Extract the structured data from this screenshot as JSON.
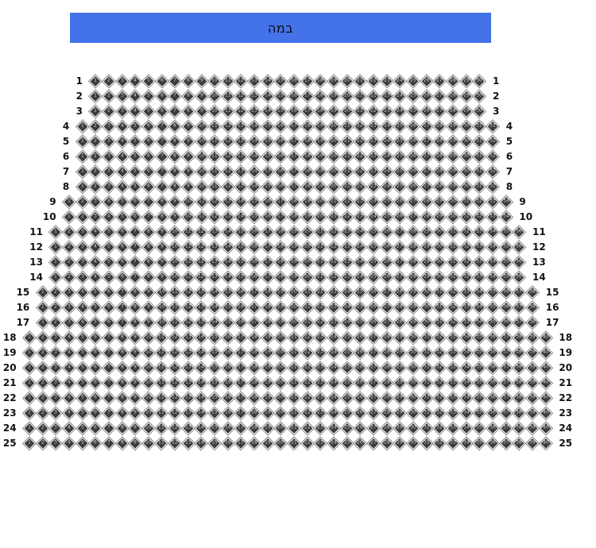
{
  "stage": {
    "label": "במה",
    "color": "#4472E8",
    "text_color": "#0B0B0B"
  },
  "seatmap": {
    "seat_numbering": "seats in each row are numbered 1..N left to right, shown inside each seat icon",
    "seat_border_color": "#8F8F8F",
    "seat_fill_color": "#3C3C3C",
    "row_label_color": "#111111",
    "rows": [
      {
        "label": "1",
        "seats": 30
      },
      {
        "label": "2",
        "seats": 30
      },
      {
        "label": "3",
        "seats": 30
      },
      {
        "label": "4",
        "seats": 32
      },
      {
        "label": "5",
        "seats": 32
      },
      {
        "label": "6",
        "seats": 32
      },
      {
        "label": "7",
        "seats": 32
      },
      {
        "label": "8",
        "seats": 32
      },
      {
        "label": "9",
        "seats": 34
      },
      {
        "label": "10",
        "seats": 34
      },
      {
        "label": "11",
        "seats": 36
      },
      {
        "label": "12",
        "seats": 36
      },
      {
        "label": "13",
        "seats": 36
      },
      {
        "label": "14",
        "seats": 36
      },
      {
        "label": "15",
        "seats": 38
      },
      {
        "label": "16",
        "seats": 38
      },
      {
        "label": "17",
        "seats": 38
      },
      {
        "label": "18",
        "seats": 40
      },
      {
        "label": "19",
        "seats": 40
      },
      {
        "label": "20",
        "seats": 40
      },
      {
        "label": "21",
        "seats": 40
      },
      {
        "label": "22",
        "seats": 40
      },
      {
        "label": "23",
        "seats": 40
      },
      {
        "label": "24",
        "seats": 40
      },
      {
        "label": "25",
        "seats": 40
      }
    ]
  }
}
